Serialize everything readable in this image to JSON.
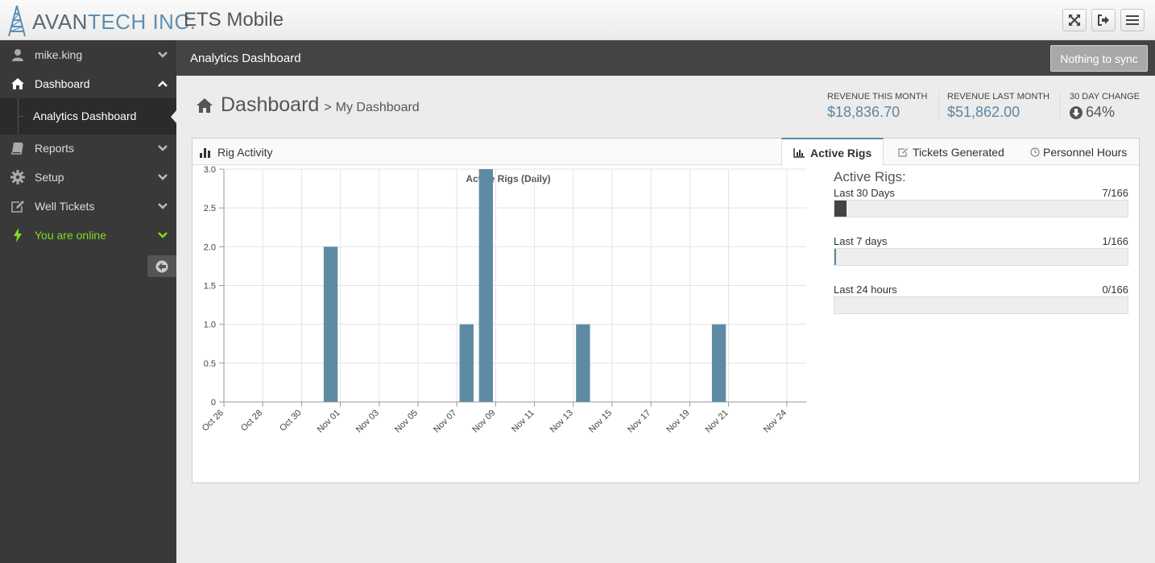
{
  "header": {
    "brand_part1": "AVAN",
    "brand_part2": "TECH INC.",
    "app_title": "ETS Mobile",
    "buttons": [
      {
        "icon": "fullscreen-icon"
      },
      {
        "icon": "logout-icon"
      },
      {
        "icon": "menu-icon"
      }
    ]
  },
  "sidebar": {
    "items": [
      {
        "label": "mike.king",
        "icon": "user-icon"
      },
      {
        "label": "Dashboard",
        "icon": "home-icon"
      },
      {
        "label": "Reports",
        "icon": "book-icon"
      },
      {
        "label": "Setup",
        "icon": "gear-icon"
      },
      {
        "label": "Well Tickets",
        "icon": "edit-icon"
      },
      {
        "label": "You are online",
        "icon": "bolt-icon"
      }
    ],
    "submenu_label": "Analytics Dashboard",
    "online_color": "#7ddc1f"
  },
  "pagebar": {
    "title": "Analytics Dashboard",
    "sync_label": "Nothing to sync"
  },
  "content": {
    "heading": "Dashboard",
    "separator": ">",
    "subheading": "My Dashboard",
    "stats": [
      {
        "label": "REVENUE THIS MONTH",
        "value": "$18,836.70"
      },
      {
        "label": "REVENUE LAST MONTH",
        "value": "$51,862.00"
      },
      {
        "label": "30 DAY CHANGE",
        "value": "64%",
        "direction": "down"
      }
    ]
  },
  "panel": {
    "title": "Rig Activity",
    "tabs": [
      {
        "label": "Active Rigs",
        "icon": "bar-chart-icon",
        "active": true
      },
      {
        "label": "Tickets Generated",
        "icon": "edit-icon",
        "active": false
      },
      {
        "label": "Personnel Hours",
        "icon": "clock-icon",
        "active": false
      }
    ]
  },
  "active_rigs": {
    "title": "Active Rigs:",
    "rows": [
      {
        "label": "Last 30 Days",
        "value": "7/166",
        "fraction": 0.0422
      },
      {
        "label": "Last 7 days",
        "value": "1/166",
        "fraction": 0.006
      },
      {
        "label": "Last 24 hours",
        "value": "0/166",
        "fraction": 0
      }
    ]
  },
  "chart_data": {
    "type": "bar",
    "title": "Active Rigs (Daily)",
    "x_type": "date",
    "x_range": [
      "2014-10-26",
      "2014-11-25"
    ],
    "xticks": [
      "Oct 26",
      "Oct 28",
      "Oct 30",
      "Nov 01",
      "Nov 03",
      "Nov 05",
      "Nov 07",
      "Nov 09",
      "Nov 11",
      "Nov 13",
      "Nov 15",
      "Nov 17",
      "Nov 19",
      "Nov 21",
      "Nov 24"
    ],
    "xtick_dates": [
      "2014-10-26",
      "2014-10-28",
      "2014-10-30",
      "2014-11-01",
      "2014-11-03",
      "2014-11-05",
      "2014-11-07",
      "2014-11-09",
      "2014-11-11",
      "2014-11-13",
      "2014-11-15",
      "2014-11-17",
      "2014-11-19",
      "2014-11-21",
      "2014-11-24"
    ],
    "yticks": [
      "0",
      "0.5",
      "1.0",
      "1.5",
      "2.0",
      "2.5",
      "3.0"
    ],
    "ylim": [
      0,
      3
    ],
    "points": [
      {
        "date": "2014-10-31",
        "value": 2
      },
      {
        "date": "2014-11-07",
        "value": 1
      },
      {
        "date": "2014-11-08",
        "value": 3
      },
      {
        "date": "2014-11-13",
        "value": 1
      },
      {
        "date": "2014-11-20",
        "value": 1
      }
    ],
    "bar_color": "#5e8aa3",
    "grid": true
  }
}
